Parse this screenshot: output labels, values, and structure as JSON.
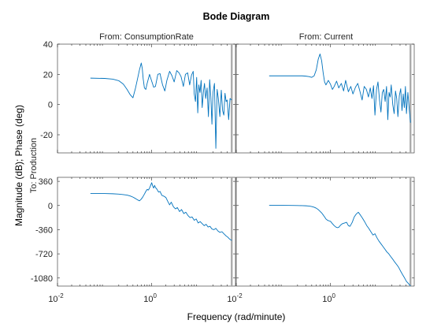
{
  "figure": {
    "title": "Bode Diagram",
    "xlabel": "Frequency (rad/minute)",
    "ylabel": "Magnitude (dB); Phase (deg)",
    "output_label": "To: Production",
    "colors": {
      "line": "#0072bd",
      "axes": "#262626",
      "nyquist_marker": "#a6a6a6",
      "background": "#ffffff"
    }
  },
  "chart_data": {
    "type": "line",
    "x_scale": "log",
    "xlim": [
      0.01,
      60
    ],
    "x_ticks": [
      0.01,
      1
    ],
    "x_tick_labels": [
      {
        "base": "10",
        "exp": "-2"
      },
      {
        "base": "10",
        "exp": "0"
      }
    ],
    "nyquist_frequency": 50,
    "grid": false,
    "columns": [
      {
        "title": "From: ConsumptionRate"
      },
      {
        "title": "From: Current"
      }
    ],
    "rows": [
      {
        "kind": "magnitude",
        "ylim": [
          -32,
          40
        ],
        "y_ticks": [
          40,
          20,
          0,
          -20
        ],
        "y_tick_labels": [
          "40",
          "20",
          "0",
          "-20"
        ]
      },
      {
        "kind": "phase",
        "ylim": [
          -1200,
          420
        ],
        "y_ticks": [
          360,
          0,
          -360,
          -720,
          -1080
        ],
        "y_tick_labels": [
          "360",
          "0",
          "-360",
          "-720",
          "-1080"
        ]
      }
    ],
    "series": [
      {
        "input": "ConsumptionRate",
        "kind": "magnitude",
        "x": [
          0.05,
          0.1,
          0.15,
          0.2,
          0.25,
          0.3,
          0.35,
          0.4,
          0.45,
          0.5,
          0.55,
          0.6,
          0.63,
          0.66,
          0.7,
          0.75,
          0.8,
          0.9,
          1.0,
          1.1,
          1.2,
          1.35,
          1.5,
          1.7,
          1.9,
          2.1,
          2.4,
          2.7,
          3.0,
          3.4,
          3.8,
          4.2,
          4.7,
          5.2,
          5.8,
          6.4,
          7.0,
          7.6,
          8.0,
          8.5,
          9.0,
          9.5,
          10.0,
          10.6,
          11.2,
          11.8,
          12.5,
          13.2,
          14.0,
          15.0,
          16.0,
          17.0,
          18.0,
          19.0,
          20.0,
          21.5,
          23.0,
          24.5,
          26.0,
          28.0,
          30.0,
          32.0,
          34.0,
          36.0,
          38.0,
          40.0,
          43.0,
          46.0,
          50.0
        ],
        "y": [
          17.5,
          17.3,
          16.8,
          15.8,
          13.5,
          10.0,
          6.5,
          4.5,
          10.5,
          17.0,
          23.0,
          27.5,
          24.0,
          17.0,
          11.0,
          10.0,
          14.0,
          20.0,
          15.5,
          11.5,
          12.0,
          20.0,
          20.5,
          13.0,
          9.0,
          16.0,
          22.0,
          19.0,
          15.0,
          22.5,
          21.0,
          18.5,
          12.0,
          20.0,
          21.0,
          13.0,
          19.5,
          22.0,
          7.0,
          2.0,
          18.0,
          -5.5,
          13.0,
          8.0,
          16.0,
          -2.0,
          8.0,
          14.0,
          4.0,
          11.0,
          -8.0,
          16.5,
          5.0,
          -13.0,
          8.0,
          14.0,
          -29.0,
          10.0,
          4.0,
          -8.0,
          9.5,
          -4.0,
          -7.0,
          7.5,
          2.0,
          3.0,
          -10.0,
          4.0,
          3.0
        ]
      },
      {
        "input": "Current",
        "kind": "magnitude",
        "x": [
          0.05,
          0.1,
          0.15,
          0.2,
          0.25,
          0.3,
          0.35,
          0.4,
          0.45,
          0.5,
          0.55,
          0.6,
          0.65,
          0.7,
          0.75,
          0.8,
          0.9,
          1.0,
          1.1,
          1.2,
          1.35,
          1.5,
          1.7,
          1.9,
          2.1,
          2.4,
          2.7,
          3.0,
          3.4,
          3.8,
          4.2,
          4.7,
          5.2,
          5.8,
          6.4,
          7.0,
          7.6,
          8.2,
          8.8,
          9.5,
          10.2,
          11.0,
          11.8,
          12.6,
          13.5,
          14.5,
          15.5,
          16.5,
          17.5,
          18.5,
          19.5,
          21.0,
          22.5,
          24.0,
          25.5,
          27.0,
          29.0,
          31.0,
          33.0,
          35.0,
          37.0,
          39.0,
          41.0,
          44.0,
          47.0,
          50.0
        ],
        "y": [
          19.0,
          19.0,
          19.0,
          19.0,
          19.0,
          18.8,
          18.5,
          18.0,
          19.0,
          23.0,
          30.0,
          33.5,
          29.0,
          21.0,
          15.0,
          13.0,
          16.0,
          13.5,
          10.0,
          12.0,
          15.5,
          11.0,
          14.0,
          9.0,
          16.0,
          8.5,
          12.0,
          7.0,
          11.5,
          14.0,
          9.0,
          3.0,
          12.0,
          10.0,
          5.0,
          11.0,
          4.0,
          12.5,
          -7.0,
          10.0,
          15.0,
          3.0,
          -5.0,
          8.0,
          10.0,
          2.0,
          12.0,
          -10.0,
          8.0,
          5.0,
          13.0,
          0.0,
          -6.0,
          9.0,
          4.0,
          -8.0,
          6.0,
          10.5,
          -4.0,
          7.0,
          -2.0,
          12.0,
          -6.0,
          8.0,
          -3.0,
          -12.0
        ]
      },
      {
        "input": "ConsumptionRate",
        "kind": "phase",
        "x": [
          0.05,
          0.1,
          0.15,
          0.2,
          0.25,
          0.3,
          0.35,
          0.4,
          0.45,
          0.5,
          0.55,
          0.6,
          0.65,
          0.7,
          0.75,
          0.8,
          0.85,
          0.9,
          0.95,
          1.0,
          1.05,
          1.1,
          1.15,
          1.2,
          1.3,
          1.4,
          1.5,
          1.65,
          1.8,
          2.0,
          2.2,
          2.4,
          2.6,
          2.9,
          3.2,
          3.5,
          3.9,
          4.3,
          4.8,
          5.3,
          5.9,
          6.5,
          7.2,
          8.0,
          8.8,
          9.7,
          10.7,
          11.8,
          13.0,
          14.3,
          15.7,
          17.3,
          19.0,
          21.0,
          23.0,
          25.5,
          28.0,
          31.0,
          34.0,
          37.5,
          41.0,
          45.0,
          50.0
        ],
        "y": [
          180,
          178,
          175,
          170,
          163,
          155,
          142,
          125,
          105,
          85,
          70,
          95,
          130,
          170,
          210,
          240,
          230,
          260,
          300,
          340,
          290,
          260,
          300,
          270,
          240,
          200,
          210,
          150,
          140,
          120,
          60,
          10,
          50,
          -20,
          -50,
          -30,
          -90,
          -60,
          -120,
          -100,
          -150,
          -180,
          -170,
          -220,
          -200,
          -260,
          -240,
          -270,
          -300,
          -280,
          -320,
          -310,
          -350,
          -360,
          -340,
          -380,
          -400,
          -390,
          -420,
          -450,
          -470,
          -500,
          -520
        ]
      },
      {
        "input": "Current",
        "kind": "phase",
        "x": [
          0.05,
          0.1,
          0.15,
          0.2,
          0.25,
          0.3,
          0.35,
          0.4,
          0.45,
          0.5,
          0.55,
          0.6,
          0.65,
          0.7,
          0.75,
          0.8,
          0.85,
          0.9,
          0.95,
          1.0,
          1.1,
          1.2,
          1.3,
          1.4,
          1.5,
          1.65,
          1.8,
          2.0,
          2.2,
          2.4,
          2.6,
          2.9,
          3.2,
          3.5,
          3.9,
          4.3,
          4.8,
          5.3,
          5.9,
          6.5,
          7.2,
          8.0,
          8.8,
          9.7,
          10.7,
          11.8,
          13.0,
          14.3,
          15.7,
          17.3,
          19.0,
          21.0,
          23.0,
          25.5,
          28.0,
          31.0,
          34.0,
          37.5,
          41.0,
          45.0,
          50.0
        ],
        "y": [
          2,
          2,
          1,
          0,
          -2,
          -4,
          -8,
          -15,
          -25,
          -40,
          -60,
          -85,
          -110,
          -140,
          -170,
          -200,
          -215,
          -225,
          -230,
          -235,
          -270,
          -300,
          -320,
          -330,
          -325,
          -290,
          -270,
          -260,
          -250,
          -300,
          -310,
          -250,
          -170,
          -130,
          -100,
          -140,
          -190,
          -240,
          -300,
          -340,
          -390,
          -440,
          -420,
          -480,
          -530,
          -570,
          -610,
          -650,
          -690,
          -720,
          -760,
          -800,
          -840,
          -880,
          -920,
          -980,
          -1030,
          -1080,
          -1130,
          -1160,
          -1200
        ]
      }
    ]
  }
}
